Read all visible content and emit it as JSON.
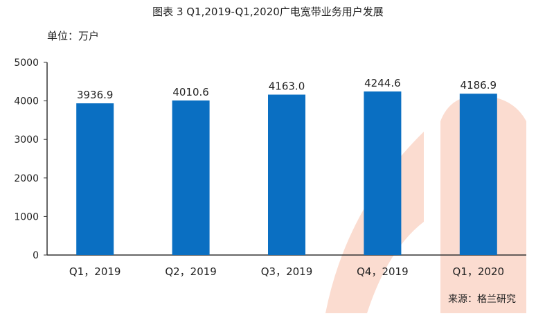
{
  "chart_data": {
    "type": "bar",
    "title": "图表 3  Q1,2019-Q1,2020广电宽带业务用户发展",
    "unit_label": "单位：万户",
    "categories": [
      "Q1，2019",
      "Q2，2019",
      "Q3，2019",
      "Q4，2019",
      "Q1，2020"
    ],
    "values": [
      3936.9,
      4010.6,
      4163.0,
      4244.6,
      4186.9
    ],
    "value_labels": [
      "3936.9",
      "4010.6",
      "4163.0",
      "4244.6",
      "4186.9"
    ],
    "ylim": [
      0,
      5000
    ],
    "yticks": [
      "0",
      "1000",
      "2000",
      "3000",
      "4000",
      "5000"
    ],
    "grid": false,
    "source": "来源：格兰研究",
    "colors": {
      "bar": "#0a6fc2",
      "watermark": "#fbdcd0",
      "axis": "#333333",
      "text": "#222222"
    }
  }
}
